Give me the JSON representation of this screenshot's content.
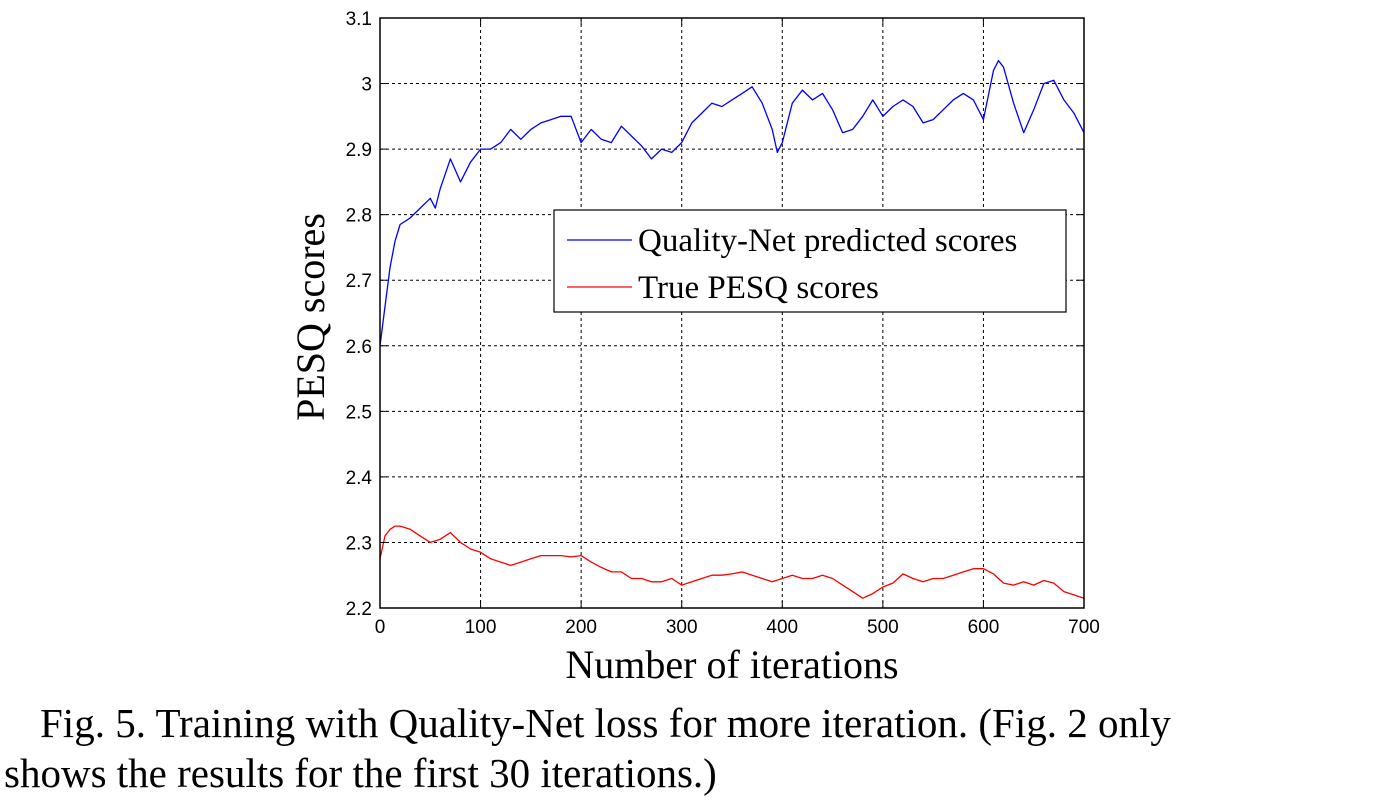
{
  "chart_data": {
    "type": "line",
    "xlabel": "Number of iterations",
    "ylabel": "PESQ scores",
    "xlim": [
      0,
      700
    ],
    "ylim": [
      2.2,
      3.1
    ],
    "xticks": [
      "0",
      "100",
      "200",
      "300",
      "400",
      "500",
      "600",
      "700"
    ],
    "yticks": [
      "2.2",
      "2.3",
      "2.4",
      "2.5",
      "2.6",
      "2.7",
      "2.8",
      "2.9",
      "3",
      "3.1"
    ],
    "grid": true,
    "legend_position": "center-right",
    "series": [
      {
        "name": "Quality-Net predicted scores",
        "color": "#0000ff",
        "x": [
          0,
          5,
          10,
          15,
          20,
          30,
          40,
          50,
          55,
          60,
          70,
          80,
          90,
          100,
          110,
          120,
          130,
          140,
          150,
          160,
          170,
          180,
          190,
          200,
          210,
          220,
          230,
          240,
          250,
          260,
          270,
          280,
          290,
          300,
          310,
          320,
          330,
          340,
          350,
          360,
          370,
          380,
          390,
          395,
          400,
          410,
          420,
          430,
          440,
          450,
          460,
          470,
          480,
          490,
          500,
          510,
          520,
          530,
          540,
          550,
          560,
          570,
          580,
          590,
          600,
          610,
          615,
          620,
          630,
          640,
          650,
          660,
          670,
          680,
          690,
          700
        ],
        "values": [
          2.6,
          2.66,
          2.72,
          2.76,
          2.785,
          2.795,
          2.81,
          2.825,
          2.81,
          2.84,
          2.885,
          2.85,
          2.88,
          2.9,
          2.9,
          2.91,
          2.93,
          2.915,
          2.93,
          2.94,
          2.945,
          2.95,
          2.95,
          2.91,
          2.93,
          2.915,
          2.91,
          2.935,
          2.92,
          2.905,
          2.885,
          2.9,
          2.895,
          2.91,
          2.94,
          2.955,
          2.97,
          2.965,
          2.975,
          2.985,
          2.995,
          2.97,
          2.93,
          2.895,
          2.91,
          2.97,
          2.99,
          2.975,
          2.985,
          2.96,
          2.925,
          2.93,
          2.95,
          2.975,
          2.95,
          2.965,
          2.975,
          2.965,
          2.94,
          2.945,
          2.96,
          2.975,
          2.985,
          2.975,
          2.945,
          3.02,
          3.035,
          3.025,
          2.97,
          2.925,
          2.96,
          3.0,
          3.005,
          2.975,
          2.955,
          2.925
        ]
      },
      {
        "name": "True PESQ scores",
        "color": "#ff0000",
        "x": [
          0,
          5,
          10,
          15,
          20,
          30,
          40,
          50,
          60,
          70,
          80,
          90,
          100,
          110,
          120,
          130,
          140,
          150,
          160,
          170,
          180,
          190,
          200,
          210,
          220,
          230,
          240,
          250,
          260,
          270,
          280,
          290,
          300,
          310,
          320,
          330,
          340,
          350,
          360,
          370,
          380,
          390,
          400,
          410,
          420,
          430,
          440,
          450,
          460,
          470,
          480,
          490,
          500,
          510,
          520,
          530,
          540,
          550,
          560,
          570,
          580,
          590,
          600,
          610,
          620,
          630,
          640,
          650,
          660,
          670,
          680,
          690,
          700
        ],
        "values": [
          2.275,
          2.31,
          2.32,
          2.325,
          2.325,
          2.32,
          2.31,
          2.3,
          2.305,
          2.315,
          2.3,
          2.29,
          2.285,
          2.275,
          2.27,
          2.265,
          2.27,
          2.275,
          2.28,
          2.28,
          2.28,
          2.278,
          2.28,
          2.27,
          2.262,
          2.255,
          2.255,
          2.245,
          2.245,
          2.24,
          2.24,
          2.245,
          2.235,
          2.24,
          2.245,
          2.25,
          2.25,
          2.252,
          2.255,
          2.25,
          2.245,
          2.24,
          2.245,
          2.25,
          2.245,
          2.245,
          2.25,
          2.245,
          2.235,
          2.225,
          2.215,
          2.222,
          2.232,
          2.238,
          2.252,
          2.245,
          2.24,
          2.245,
          2.245,
          2.25,
          2.255,
          2.26,
          2.26,
          2.252,
          2.238,
          2.235,
          2.24,
          2.235,
          2.242,
          2.238,
          2.225,
          2.22,
          2.215
        ]
      }
    ]
  },
  "caption": {
    "line1": "Fig. 5. Training with Quality-Net loss for more iteration. (Fig. 2 only",
    "line2": "shows the results for the first 30 iterations.)"
  }
}
